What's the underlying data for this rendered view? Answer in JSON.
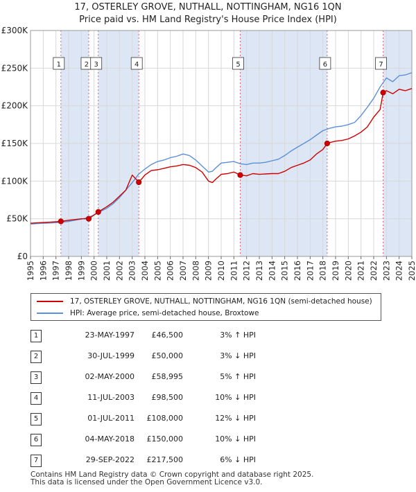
{
  "title_line1": "17, OSTERLEY GROVE, NUTHALL, NOTTINGHAM, NG16 1QN",
  "title_line2": "Price paid vs. HM Land Registry's House Price Index (HPI)",
  "chart_data": {
    "type": "line",
    "title": "17, OSTERLEY GROVE, NUTHALL, NOTTINGHAM, NG16 1QN — Price paid vs. HM Land Registry's House Price Index (HPI)",
    "xlabel": "",
    "ylabel": "",
    "xlim": [
      1995,
      2025
    ],
    "ylim": [
      0,
      300000
    ],
    "y_ticks": [
      0,
      50000,
      100000,
      150000,
      200000,
      250000,
      300000
    ],
    "y_tick_labels": [
      "£0",
      "£50K",
      "£100K",
      "£150K",
      "£200K",
      "£250K",
      "£300K"
    ],
    "x_ticks": [
      "1995",
      "1996",
      "1997",
      "1998",
      "1999",
      "2000",
      "2001",
      "2002",
      "2003",
      "2004",
      "2005",
      "2006",
      "2007",
      "2008",
      "2009",
      "2010",
      "2011",
      "2012",
      "2013",
      "2014",
      "2015",
      "2016",
      "2017",
      "2018",
      "2019",
      "2020",
      "2021",
      "2022",
      "2023",
      "2024",
      "2025"
    ],
    "grid": true,
    "colors": {
      "property": "#cc0000",
      "hpi": "#5b8fd6",
      "shade": "#dde6f5",
      "marker_line": "#e06070"
    },
    "series": [
      {
        "name": "17, OSTERLEY GROVE, NUTHALL, NOTTINGHAM, NG16 1QN (semi-detached house)",
        "color": "#cc0000",
        "x": [
          1995.0,
          1995.5,
          1996.0,
          1996.5,
          1997.0,
          1997.39,
          1998.0,
          1998.5,
          1999.0,
          1999.58,
          2000.0,
          2000.33,
          2001.0,
          2001.5,
          2002.0,
          2002.5,
          2003.0,
          2003.52,
          2004.0,
          2004.5,
          2005.0,
          2005.5,
          2006.0,
          2006.5,
          2007.0,
          2007.5,
          2008.0,
          2008.5,
          2009.0,
          2009.3,
          2009.6,
          2010.0,
          2010.5,
          2011.0,
          2011.5,
          2012.0,
          2012.5,
          2013.0,
          2013.5,
          2014.0,
          2014.5,
          2015.0,
          2015.5,
          2016.0,
          2016.5,
          2017.0,
          2017.5,
          2018.0,
          2018.34,
          2018.5,
          2019.0,
          2019.5,
          2020.0,
          2020.5,
          2021.0,
          2021.5,
          2022.0,
          2022.5,
          2022.74,
          2023.0,
          2023.5,
          2024.0,
          2024.5,
          2025.0
        ],
        "y": [
          44000,
          44500,
          45000,
          45500,
          46000,
          46500,
          48000,
          49000,
          50000,
          50000,
          55000,
          58995,
          66000,
          72000,
          80000,
          88000,
          108000,
          98500,
          108000,
          114000,
          115000,
          117000,
          119000,
          120000,
          122000,
          121000,
          118000,
          112000,
          100000,
          98000,
          103000,
          109000,
          110000,
          112000,
          108000,
          107000,
          110000,
          109000,
          109500,
          110000,
          110000,
          113000,
          118000,
          121000,
          124000,
          128000,
          136000,
          142000,
          150000,
          151000,
          153000,
          154000,
          156000,
          160000,
          165000,
          172000,
          185000,
          195000,
          217500,
          220000,
          216000,
          222000,
          220000,
          223000
        ]
      },
      {
        "name": "HPI: Average price, semi-detached house, Broxtowe",
        "color": "#5b8fd6",
        "x": [
          1995.0,
          1995.5,
          1996.0,
          1996.5,
          1997.0,
          1997.5,
          1998.0,
          1998.5,
          1999.0,
          1999.5,
          2000.0,
          2000.5,
          2001.0,
          2001.5,
          2002.0,
          2002.5,
          2003.0,
          2003.5,
          2004.0,
          2004.5,
          2005.0,
          2005.5,
          2006.0,
          2006.5,
          2007.0,
          2007.5,
          2008.0,
          2008.5,
          2009.0,
          2009.3,
          2009.6,
          2010.0,
          2010.5,
          2011.0,
          2011.5,
          2012.0,
          2012.5,
          2013.0,
          2013.5,
          2014.0,
          2014.5,
          2015.0,
          2015.5,
          2016.0,
          2016.5,
          2017.0,
          2017.5,
          2018.0,
          2018.5,
          2019.0,
          2019.5,
          2020.0,
          2020.5,
          2021.0,
          2021.5,
          2022.0,
          2022.5,
          2023.0,
          2023.5,
          2024.0,
          2024.5,
          2025.0
        ],
        "y": [
          43000,
          43500,
          44000,
          44300,
          44800,
          45500,
          46500,
          48000,
          49500,
          51500,
          55000,
          59500,
          64000,
          70000,
          78000,
          88000,
          98000,
          109000,
          116000,
          122000,
          126000,
          128000,
          131000,
          133000,
          136000,
          134000,
          128000,
          120000,
          112000,
          113000,
          118000,
          124000,
          125000,
          126000,
          123000,
          122000,
          124000,
          124000,
          125000,
          127000,
          129000,
          134000,
          140000,
          145000,
          150000,
          155000,
          161000,
          167000,
          170000,
          172000,
          173000,
          175000,
          178000,
          187000,
          198000,
          210000,
          225000,
          237000,
          232000,
          240000,
          241000,
          244000
        ]
      }
    ],
    "sales": [
      {
        "label": "1",
        "x": 1997.39,
        "price": 46500
      },
      {
        "label": "2",
        "x": 1999.58,
        "price": 50000
      },
      {
        "label": "3",
        "x": 2000.33,
        "price": 58995
      },
      {
        "label": "4",
        "x": 2003.52,
        "price": 98500
      },
      {
        "label": "5",
        "x": 2011.5,
        "price": 108000
      },
      {
        "label": "6",
        "x": 2018.34,
        "price": 150000
      },
      {
        "label": "7",
        "x": 2022.74,
        "price": 217500
      }
    ],
    "shaded_ranges": [
      [
        1997.39,
        1999.58
      ],
      [
        2000.33,
        2003.52
      ],
      [
        2011.5,
        2018.34
      ],
      [
        2022.74,
        2025.0
      ]
    ]
  },
  "legend": {
    "property_label": "17, OSTERLEY GROVE, NUTHALL, NOTTINGHAM, NG16 1QN (semi-detached house)",
    "hpi_label": "HPI: Average price, semi-detached house, Broxtowe"
  },
  "sales_table": [
    {
      "num": "1",
      "date": "23-MAY-1997",
      "price": "£46,500",
      "hpi": "3% ↑ HPI"
    },
    {
      "num": "2",
      "date": "30-JUL-1999",
      "price": "£50,000",
      "hpi": "3% ↓ HPI"
    },
    {
      "num": "3",
      "date": "02-MAY-2000",
      "price": "£58,995",
      "hpi": "5% ↑ HPI"
    },
    {
      "num": "4",
      "date": "11-JUL-2003",
      "price": "£98,500",
      "hpi": "10% ↓ HPI"
    },
    {
      "num": "5",
      "date": "01-JUL-2011",
      "price": "£108,000",
      "hpi": "12% ↓ HPI"
    },
    {
      "num": "6",
      "date": "04-MAY-2018",
      "price": "£150,000",
      "hpi": "10% ↓ HPI"
    },
    {
      "num": "7",
      "date": "29-SEP-2022",
      "price": "£217,500",
      "hpi": "6% ↓ HPI"
    }
  ],
  "footer": {
    "line1": "Contains HM Land Registry data © Crown copyright and database right 2025.",
    "line2": "This data is licensed under the Open Government Licence v3.0."
  }
}
